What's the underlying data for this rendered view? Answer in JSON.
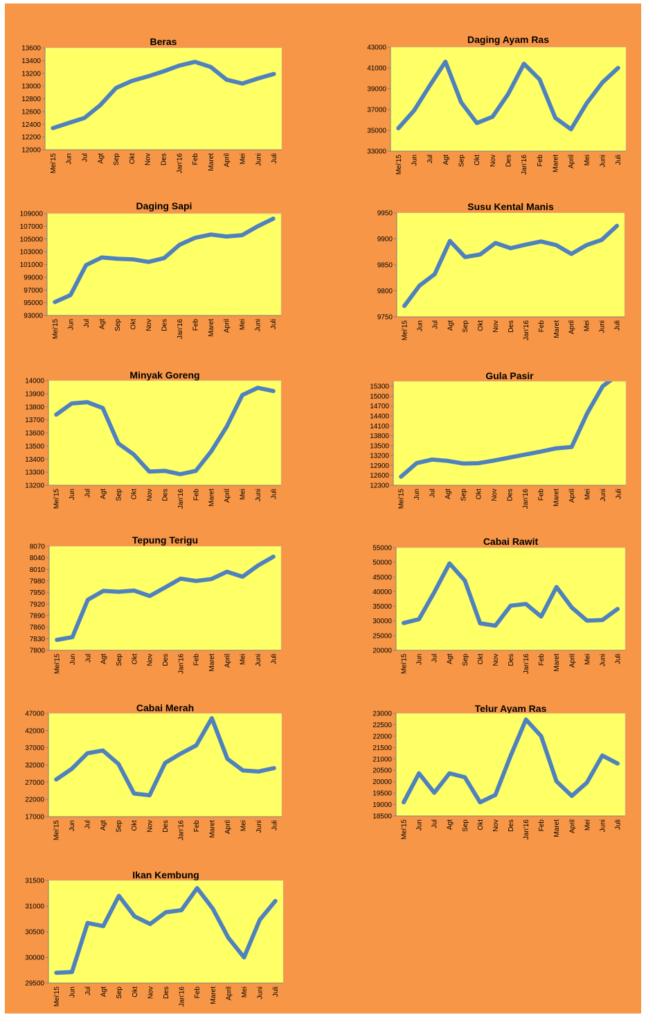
{
  "colors": {
    "background": "#f79646",
    "plot_area": "#ffff66",
    "line": "#4f81bd"
  },
  "chart_data": [
    {
      "type": "line",
      "title": "Beras",
      "categories": [
        "Mei'15",
        "Jun",
        "Jul",
        "Agt",
        "Sep",
        "Okt",
        "Nov",
        "Des",
        "Jan'16",
        "Feb",
        "Maret",
        "April",
        "Mei",
        "Juni",
        "Juli"
      ],
      "yticks": [
        "12000",
        "12200",
        "12400",
        "12600",
        "12800",
        "13000",
        "13200",
        "13400",
        "13600"
      ],
      "ylim": [
        12000,
        13600
      ],
      "series": [
        {
          "values": [
            12340,
            12420,
            12500,
            12700,
            12970,
            13080,
            13150,
            13230,
            13320,
            13380,
            13300,
            13100,
            13040,
            13120,
            13190
          ]
        }
      ]
    },
    {
      "type": "line",
      "title": "Daging Ayam Ras",
      "categories": [
        "Mei'15",
        "Jun",
        "Jul",
        "Agt",
        "Sep",
        "Okt",
        "Nov",
        "Des",
        "Jan'16",
        "Feb",
        "Maret",
        "April",
        "Mei",
        "Juni",
        "Juli"
      ],
      "yticks": [
        "33000",
        "35000",
        "37000",
        "39000",
        "41000",
        "43000"
      ],
      "ylim": [
        33000,
        43000
      ],
      "series": [
        {
          "values": [
            35200,
            36900,
            39300,
            41600,
            37700,
            35700,
            36300,
            38500,
            41400,
            39900,
            36200,
            35100,
            37600,
            39600,
            41000
          ]
        }
      ]
    },
    {
      "type": "line",
      "title": "Daging Sapi",
      "categories": [
        "Mei'15",
        "Jun",
        "Jul",
        "Agt",
        "Sep",
        "Okt",
        "Nov",
        "Des",
        "Jan'16",
        "Feb",
        "Maret",
        "April",
        "Mei",
        "Juni",
        "Juli"
      ],
      "yticks": [
        "93000",
        "95000",
        "97000",
        "99000",
        "101000",
        "103000",
        "105000",
        "107000",
        "109000"
      ],
      "ylim": [
        93000,
        109000
      ],
      "series": [
        {
          "values": [
            95100,
            96200,
            100900,
            102100,
            101900,
            101800,
            101400,
            102000,
            104100,
            105200,
            105700,
            105400,
            105600,
            107000,
            108200
          ]
        }
      ]
    },
    {
      "type": "line",
      "title": "Susu Kental Manis",
      "categories": [
        "Mei'15",
        "Jun",
        "Jul",
        "Agt",
        "Sep",
        "Okt",
        "Nov",
        "Des",
        "Jan'16",
        "Feb",
        "Maret",
        "April",
        "Mei",
        "Juni",
        "Juli"
      ],
      "yticks": [
        "9750",
        "9800",
        "9850",
        "9900",
        "9950"
      ],
      "ylim": [
        9750,
        9950
      ],
      "series": [
        {
          "values": [
            9771,
            9810,
            9832,
            9896,
            9865,
            9870,
            9892,
            9882,
            9889,
            9895,
            9888,
            9871,
            9888,
            9898,
            9925
          ]
        }
      ]
    },
    {
      "type": "line",
      "title": "Minyak Goreng",
      "categories": [
        "Mei'15",
        "Jun",
        "Jul",
        "Agt",
        "Sep",
        "Okt",
        "Nov",
        "Des",
        "Jan'16",
        "Feb",
        "Maret",
        "April",
        "Mei",
        "Juni",
        "Juli"
      ],
      "yticks": [
        "13200",
        "13300",
        "13400",
        "13500",
        "13600",
        "13700",
        "13800",
        "13900",
        "14000"
      ],
      "ylim": [
        13200,
        14000
      ],
      "series": [
        {
          "values": [
            13740,
            13825,
            13835,
            13790,
            13520,
            13435,
            13305,
            13310,
            13285,
            13310,
            13460,
            13650,
            13890,
            13945,
            13920
          ]
        }
      ]
    },
    {
      "type": "line",
      "title": "Gula Pasir",
      "categories": [
        "Mei'15",
        "Jun",
        "Jul",
        "Agt",
        "Sep",
        "Okt",
        "Nov",
        "Des",
        "Jan'16",
        "Feb",
        "Maret",
        "April",
        "Mei",
        "Juni",
        "Juli"
      ],
      "yticks": [
        "12300",
        "12600",
        "12900",
        "13200",
        "13500",
        "13800",
        "14100",
        "14400",
        "14700",
        "15000",
        "15300"
      ],
      "ylim": [
        12300,
        15450
      ],
      "series": [
        {
          "values": [
            12560,
            12970,
            13080,
            13040,
            12960,
            12970,
            13050,
            13140,
            13230,
            13320,
            13420,
            13460,
            14480,
            15300,
            15650
          ]
        }
      ]
    },
    {
      "type": "line",
      "title": "Tepung Terigu",
      "categories": [
        "Mei'15",
        "Jun",
        "Jul",
        "Agt",
        "Sep",
        "Okt",
        "Nov",
        "Des",
        "Jan'16",
        "Feb",
        "Maret",
        "April",
        "Mei",
        "Juni",
        "Juli"
      ],
      "yticks": [
        "7800",
        "7830",
        "7860",
        "7890",
        "7920",
        "7950",
        "7980",
        "8010",
        "8040",
        "8070"
      ],
      "ylim": [
        7800,
        8070
      ],
      "series": [
        {
          "values": [
            7827,
            7834,
            7931,
            7954,
            7952,
            7955,
            7941,
            7963,
            7986,
            7980,
            7985,
            8004,
            7991,
            8020,
            8043
          ]
        }
      ]
    },
    {
      "type": "line",
      "title": "Cabai Rawit",
      "categories": [
        "Mei'15",
        "Jun",
        "Jul",
        "Agt",
        "Sep",
        "Okt",
        "Nov",
        "Des",
        "Jan'16",
        "Feb",
        "Maret",
        "April",
        "Mei",
        "Juni",
        "Juli"
      ],
      "yticks": [
        "20000",
        "25000",
        "30000",
        "35000",
        "40000",
        "45000",
        "50000",
        "55000"
      ],
      "ylim": [
        20000,
        55000
      ],
      "series": [
        {
          "values": [
            29300,
            30600,
            39800,
            49600,
            43800,
            29200,
            28400,
            35200,
            35800,
            31500,
            41600,
            34600,
            30100,
            30300,
            34100
          ]
        }
      ]
    },
    {
      "type": "line",
      "title": "Cabai Merah",
      "categories": [
        "Mei'15",
        "Jun",
        "Jul",
        "Agt",
        "Sep",
        "Okt",
        "Nov",
        "Des",
        "Jan'16",
        "Feb",
        "Maret",
        "April",
        "Mei",
        "Juni",
        "Juli"
      ],
      "yticks": [
        "17000",
        "22000",
        "27000",
        "32000",
        "37000",
        "42000",
        "47000"
      ],
      "ylim": [
        17000,
        47000
      ],
      "series": [
        {
          "values": [
            27800,
            30900,
            35400,
            36200,
            32300,
            23700,
            23200,
            32600,
            35300,
            37700,
            45600,
            33800,
            30400,
            30100,
            31100
          ]
        }
      ]
    },
    {
      "type": "line",
      "title": "Telur Ayam Ras",
      "categories": [
        "Mei'15",
        "Jun",
        "Jul",
        "Agt",
        "Sep",
        "Okt",
        "Nov",
        "Des",
        "Jan'16",
        "Feb",
        "Maret",
        "April",
        "Mei",
        "Juni",
        "Juli"
      ],
      "yticks": [
        "18500",
        "19000",
        "19500",
        "20000",
        "20500",
        "21000",
        "21500",
        "22000",
        "22500",
        "23000"
      ],
      "ylim": [
        18500,
        23000
      ],
      "series": [
        {
          "values": [
            19100,
            20370,
            19520,
            20370,
            20200,
            19100,
            19420,
            21140,
            22730,
            22000,
            20020,
            19380,
            19970,
            21150,
            20800
          ]
        }
      ]
    },
    {
      "type": "line",
      "title": "Ikan Kembung",
      "categories": [
        "Mei'15",
        "Jun",
        "Jul",
        "Agt",
        "Sep",
        "Okt",
        "Nov",
        "Des",
        "Jan'16",
        "Feb",
        "Maret",
        "April",
        "Mei",
        "Juni",
        "Juli"
      ],
      "yticks": [
        "29500",
        "30000",
        "30500",
        "31000",
        "31500"
      ],
      "ylim": [
        29500,
        31500
      ],
      "series": [
        {
          "values": [
            29700,
            29715,
            30670,
            30610,
            31200,
            30800,
            30650,
            30880,
            30920,
            31350,
            30950,
            30380,
            30000,
            30730,
            31100
          ]
        }
      ]
    }
  ]
}
